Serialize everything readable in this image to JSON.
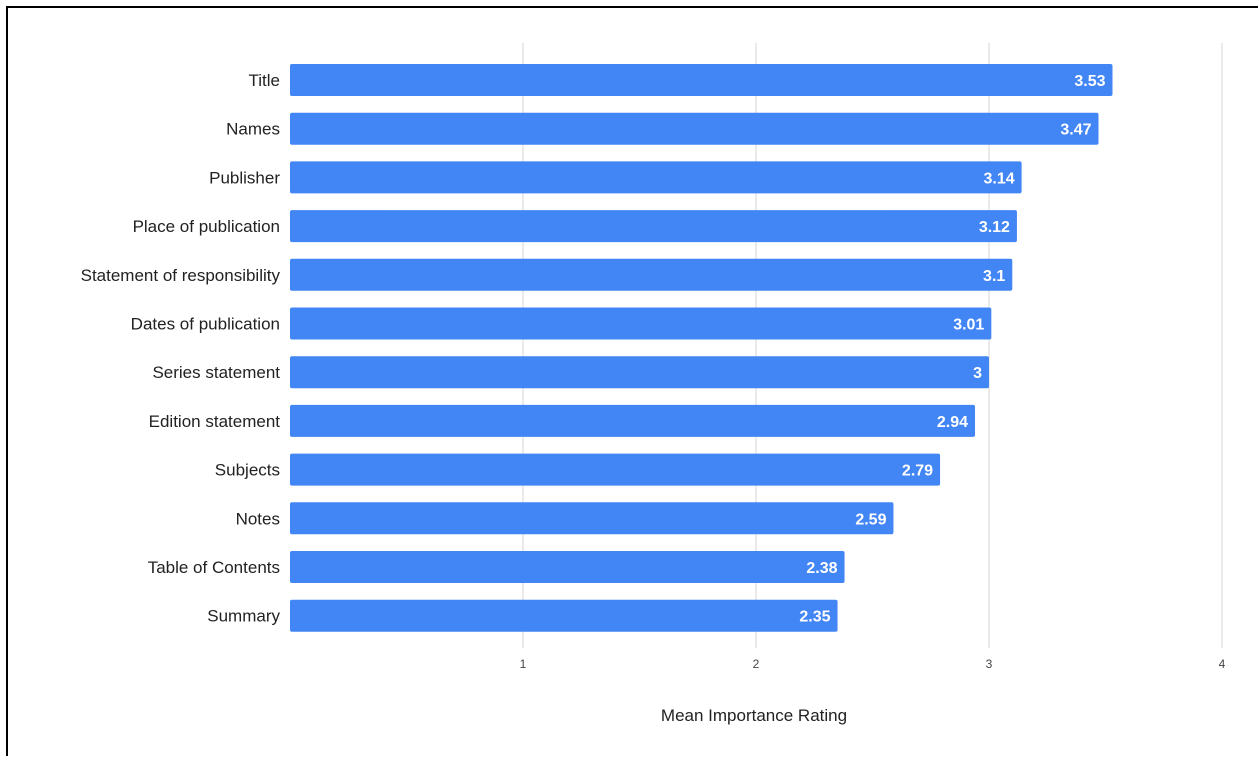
{
  "chart_data": {
    "type": "bar",
    "orientation": "horizontal",
    "categories": [
      "Title",
      "Names",
      "Publisher",
      "Place of publication",
      "Statement of responsibility",
      "Dates of publication",
      "Series statement",
      "Edition statement",
      "Subjects",
      "Notes",
      "Table of Contents",
      "Summary"
    ],
    "values": [
      3.53,
      3.47,
      3.14,
      3.12,
      3.1,
      3.01,
      3,
      2.94,
      2.79,
      2.59,
      2.38,
      2.35
    ],
    "value_labels": [
      "3.53",
      "3.47",
      "3.14",
      "3.12",
      "3.1",
      "3.01",
      "3",
      "2.94",
      "2.79",
      "2.59",
      "2.38",
      "2.35"
    ],
    "title": "",
    "xlabel": "Mean Importance Rating",
    "ylabel": "",
    "xlim": [
      0,
      4
    ],
    "xticks": [
      1,
      2,
      3,
      4
    ],
    "xtick_labels": [
      "1",
      "2",
      "3",
      "4"
    ],
    "grid": "vertical",
    "legend": "none"
  },
  "colors": {
    "bar": "#4285f4",
    "gridline": "#d6d6d6",
    "value_label": "#ffffff",
    "text": "#222222"
  }
}
